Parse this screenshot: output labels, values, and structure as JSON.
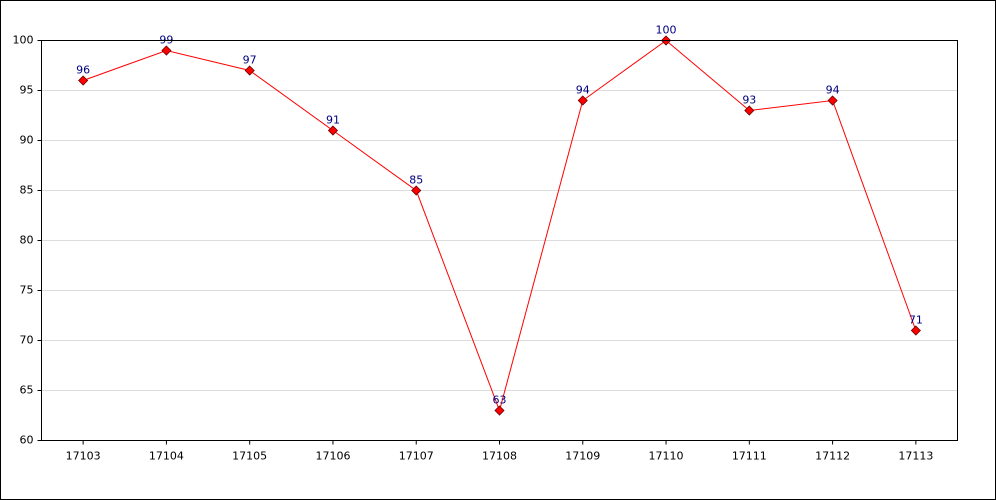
{
  "chart_data": {
    "type": "line",
    "categories": [
      "17103",
      "17104",
      "17105",
      "17106",
      "17107",
      "17108",
      "17109",
      "17110",
      "17111",
      "17112",
      "17113"
    ],
    "series": [
      {
        "color": "#ff0000",
        "values": [
          96,
          99,
          97,
          91,
          85,
          63,
          94,
          100,
          93,
          94,
          71
        ]
      }
    ],
    "ylim": [
      60,
      100
    ],
    "yticks": [
      60,
      65,
      70,
      75,
      80,
      85,
      90,
      95,
      100
    ],
    "grid": true
  }
}
